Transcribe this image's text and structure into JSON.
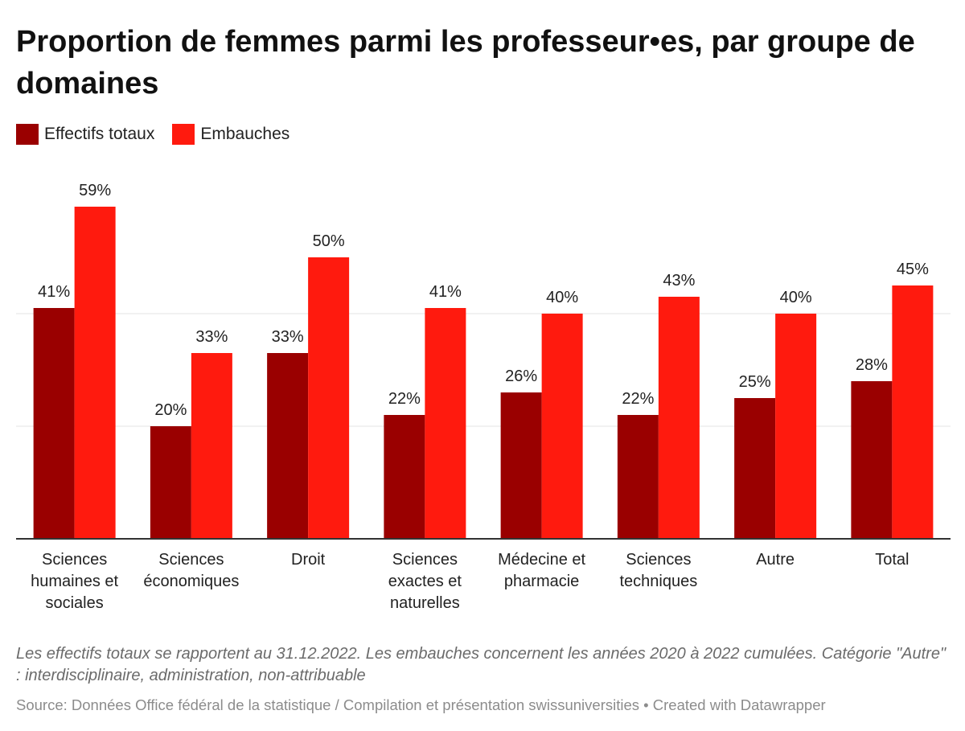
{
  "title": "Proportion de femmes parmi les professeur•es, par groupe de domaines",
  "legend": [
    {
      "label": "Effectifs totaux",
      "color": "#9a0000"
    },
    {
      "label": "Embauches",
      "color": "#ff1a0e"
    }
  ],
  "notes": "Les effectifs totaux se rapportent au 31.12.2022. Les embauches concernent les années 2020 à 2022 cumulées. Catégorie \"Autre\" : interdisciplinaire, administration, non-attribuable",
  "source": "Source: Données Office fédéral de la statistique / Compilation et présentation swissuniversities • Created with Datawrapper",
  "chart_data": {
    "type": "bar",
    "categories": [
      [
        "Sciences",
        "humaines et",
        "sociales"
      ],
      [
        "Sciences",
        "économiques"
      ],
      [
        "Droit"
      ],
      [
        "Sciences",
        "exactes et",
        "naturelles"
      ],
      [
        "Médecine et",
        "pharmacie"
      ],
      [
        "Sciences",
        "techniques"
      ],
      [
        "Autre"
      ],
      [
        "Total"
      ]
    ],
    "series": [
      {
        "name": "Effectifs totaux",
        "color": "#9a0000",
        "values": [
          41,
          20,
          33,
          22,
          26,
          22,
          25,
          28
        ],
        "labels": [
          "41%",
          "20%",
          "33%",
          "22%",
          "26%",
          "22%",
          "25%",
          "28%"
        ]
      },
      {
        "name": "Embauches",
        "color": "#ff1a0e",
        "values": [
          59,
          33,
          50,
          41,
          40,
          43,
          40,
          45
        ],
        "labels": [
          "59%",
          "33%",
          "50%",
          "41%",
          "40%",
          "43%",
          "40%",
          "45%"
        ]
      }
    ],
    "ylim": [
      0,
      60
    ],
    "gridlines": [
      20,
      40
    ],
    "xlabel": "",
    "ylabel": "",
    "legend_position": "top-left"
  }
}
